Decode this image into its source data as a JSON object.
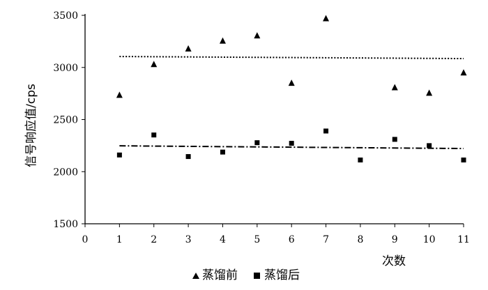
{
  "chart_data": {
    "type": "scatter",
    "title": "",
    "xlabel": "次数",
    "ylabel": "信号响应值/cps",
    "xlim": [
      0,
      11
    ],
    "ylim": [
      1500,
      3500
    ],
    "x_ticks": [
      0,
      1,
      2,
      3,
      4,
      5,
      6,
      7,
      8,
      9,
      10,
      11
    ],
    "y_ticks": [
      1500,
      2000,
      2500,
      3000,
      3500
    ],
    "grid": false,
    "legend_position": "bottom-left",
    "series": [
      {
        "name": "蒸馏前",
        "marker": "triangle",
        "color": "#000000",
        "x": [
          1,
          2,
          3,
          4,
          5,
          6,
          7,
          9,
          10,
          11
        ],
        "y": [
          2735,
          3030,
          3180,
          3255,
          3305,
          2850,
          3470,
          2808,
          2755,
          2950
        ],
        "trendline": {
          "style": "dotted",
          "x": [
            1,
            11
          ],
          "y": [
            3105,
            3085
          ]
        }
      },
      {
        "name": "蒸馏后",
        "marker": "square",
        "color": "#000000",
        "x": [
          1,
          2,
          3,
          4,
          5,
          6,
          7,
          8,
          9,
          10,
          11
        ],
        "y": [
          2160,
          2352,
          2145,
          2188,
          2278,
          2272,
          2390,
          2112,
          2310,
          2250,
          2112
        ],
        "trendline": {
          "style": "dash-dot",
          "x": [
            1,
            11
          ],
          "y": [
            2248,
            2222
          ]
        }
      }
    ]
  }
}
